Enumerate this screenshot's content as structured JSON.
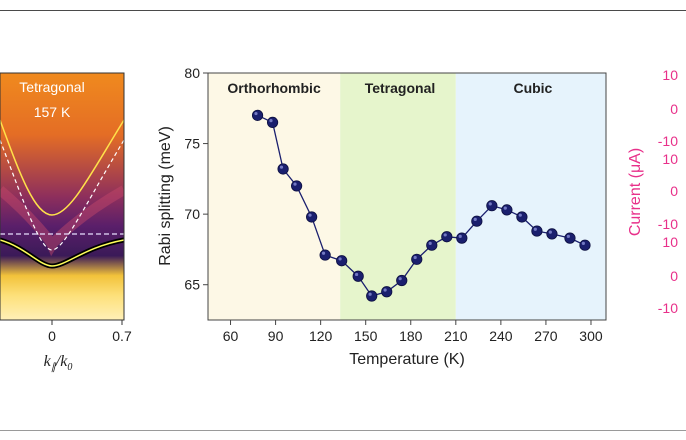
{
  "left_panel": {
    "phase_label": "Tetragonal",
    "temperature_label": "157 K",
    "x_ticks": [
      "0",
      "0.7"
    ],
    "x_label_main": "k",
    "x_label_sub": "∥",
    "x_label_den": "/k",
    "x_label_den_sub": "0"
  },
  "right_panel": {
    "axis_label": "Current (μA)",
    "tick_labels": [
      "10",
      "0",
      "-10",
      "10",
      "0",
      "-10",
      "10",
      "0",
      "-10"
    ],
    "color": "#e8308a"
  },
  "chart_data": {
    "type": "scatter",
    "xlabel": "Temperature (K)",
    "ylabel": "Rabi splitting (meV)",
    "xlim": [
      45,
      310
    ],
    "ylim": [
      62.5,
      80
    ],
    "x_ticks": [
      60,
      90,
      120,
      150,
      180,
      210,
      240,
      270,
      300
    ],
    "y_ticks": [
      65,
      70,
      75,
      80
    ],
    "grid": false,
    "marker_color": "#1a1f6e",
    "line_color": "#1a1f6e",
    "regions": [
      {
        "label": "Orthorhombic",
        "x_start": 45,
        "x_end": 133,
        "color": "#fdf8e6"
      },
      {
        "label": "Tetragonal",
        "x_start": 133,
        "x_end": 210,
        "color": "#e6f5cc"
      },
      {
        "label": "Cubic",
        "x_start": 210,
        "x_end": 310,
        "color": "#e6f3fc"
      }
    ],
    "series": [
      {
        "x": [
          78,
          88,
          95,
          104,
          114,
          123,
          134,
          145,
          154,
          164,
          174,
          184,
          194,
          204,
          214,
          224,
          234,
          244,
          254,
          264,
          274,
          286,
          296
        ],
        "y": [
          77.0,
          76.5,
          73.2,
          72.0,
          69.8,
          67.1,
          66.7,
          65.6,
          64.2,
          64.5,
          65.3,
          66.8,
          67.8,
          68.4,
          68.3,
          69.5,
          70.6,
          70.3,
          69.8,
          68.8,
          68.6,
          68.3,
          67.8
        ]
      }
    ]
  }
}
